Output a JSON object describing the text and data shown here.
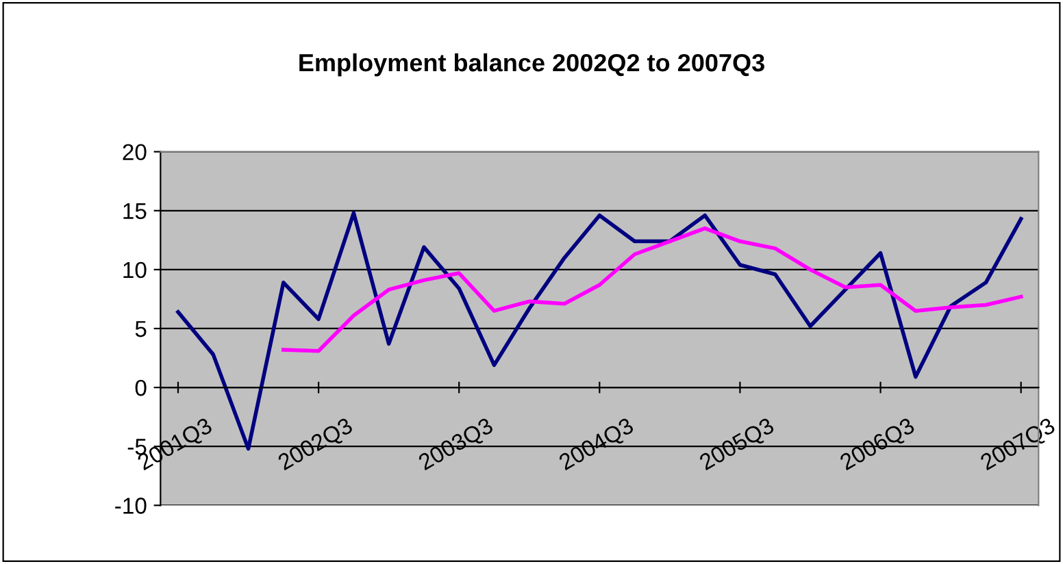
{
  "chart_data": {
    "type": "line",
    "title": "Employment balance 2002Q2 to 2007Q3",
    "categories": [
      "2001Q3",
      null,
      null,
      null,
      "2002Q3",
      null,
      null,
      null,
      "2003Q3",
      null,
      null,
      null,
      "2004Q3",
      null,
      null,
      null,
      "2005Q3",
      null,
      null,
      null,
      "2006Q3",
      null,
      null,
      null,
      "2007Q3"
    ],
    "series": [
      {
        "color": "#000080",
        "values": [
          6.4,
          2.8,
          -5.2,
          8.9,
          5.8,
          14.8,
          3.7,
          11.9,
          8.4,
          1.9,
          6.7,
          11.0,
          14.6,
          12.4,
          12.4,
          14.6,
          10.4,
          9.6,
          5.2,
          8.3,
          11.4,
          0.9,
          6.9,
          8.9,
          14.3
        ]
      },
      {
        "color": "#ff00ff",
        "values": [
          null,
          null,
          null,
          3.2,
          3.1,
          6.1,
          8.3,
          9.1,
          9.7,
          6.5,
          7.3,
          7.1,
          8.7,
          11.3,
          12.4,
          13.5,
          12.4,
          11.8,
          10.0,
          8.5,
          8.7,
          6.5,
          6.8,
          7.0,
          7.7
        ]
      }
    ],
    "ylim": [
      -10,
      20
    ],
    "yticks": [
      -10,
      -5,
      0,
      5,
      10,
      15,
      20
    ],
    "grid": "y",
    "legend": false,
    "marker": "none",
    "line_style": "solid"
  }
}
